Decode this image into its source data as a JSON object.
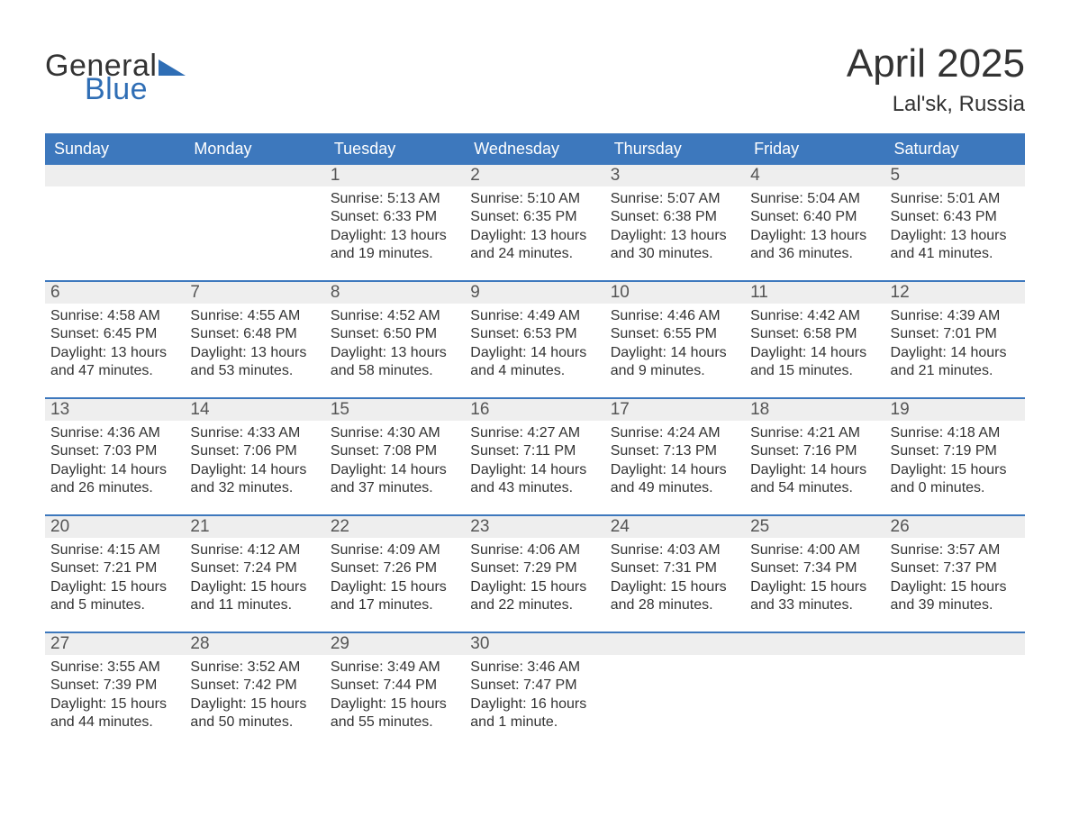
{
  "brand": {
    "word1": "General",
    "word2": "Blue",
    "accent_color": "#2f6eb5"
  },
  "title": "April 2025",
  "location": "Lal'sk, Russia",
  "colors": {
    "header_bg": "#3d78bd",
    "header_text": "#ffffff",
    "daynum_bg": "#eeeeee",
    "week_divider": "#3d78bd",
    "page_bg": "#ffffff",
    "body_text": "#333333"
  },
  "weekdays": [
    "Sunday",
    "Monday",
    "Tuesday",
    "Wednesday",
    "Thursday",
    "Friday",
    "Saturday"
  ],
  "weeks": [
    [
      {},
      {},
      {
        "day": "1",
        "sunrise": "Sunrise: 5:13 AM",
        "sunset": "Sunset: 6:33 PM",
        "daylight": "Daylight: 13 hours and 19 minutes."
      },
      {
        "day": "2",
        "sunrise": "Sunrise: 5:10 AM",
        "sunset": "Sunset: 6:35 PM",
        "daylight": "Daylight: 13 hours and 24 minutes."
      },
      {
        "day": "3",
        "sunrise": "Sunrise: 5:07 AM",
        "sunset": "Sunset: 6:38 PM",
        "daylight": "Daylight: 13 hours and 30 minutes."
      },
      {
        "day": "4",
        "sunrise": "Sunrise: 5:04 AM",
        "sunset": "Sunset: 6:40 PM",
        "daylight": "Daylight: 13 hours and 36 minutes."
      },
      {
        "day": "5",
        "sunrise": "Sunrise: 5:01 AM",
        "sunset": "Sunset: 6:43 PM",
        "daylight": "Daylight: 13 hours and 41 minutes."
      }
    ],
    [
      {
        "day": "6",
        "sunrise": "Sunrise: 4:58 AM",
        "sunset": "Sunset: 6:45 PM",
        "daylight": "Daylight: 13 hours and 47 minutes."
      },
      {
        "day": "7",
        "sunrise": "Sunrise: 4:55 AM",
        "sunset": "Sunset: 6:48 PM",
        "daylight": "Daylight: 13 hours and 53 minutes."
      },
      {
        "day": "8",
        "sunrise": "Sunrise: 4:52 AM",
        "sunset": "Sunset: 6:50 PM",
        "daylight": "Daylight: 13 hours and 58 minutes."
      },
      {
        "day": "9",
        "sunrise": "Sunrise: 4:49 AM",
        "sunset": "Sunset: 6:53 PM",
        "daylight": "Daylight: 14 hours and 4 minutes."
      },
      {
        "day": "10",
        "sunrise": "Sunrise: 4:46 AM",
        "sunset": "Sunset: 6:55 PM",
        "daylight": "Daylight: 14 hours and 9 minutes."
      },
      {
        "day": "11",
        "sunrise": "Sunrise: 4:42 AM",
        "sunset": "Sunset: 6:58 PM",
        "daylight": "Daylight: 14 hours and 15 minutes."
      },
      {
        "day": "12",
        "sunrise": "Sunrise: 4:39 AM",
        "sunset": "Sunset: 7:01 PM",
        "daylight": "Daylight: 14 hours and 21 minutes."
      }
    ],
    [
      {
        "day": "13",
        "sunrise": "Sunrise: 4:36 AM",
        "sunset": "Sunset: 7:03 PM",
        "daylight": "Daylight: 14 hours and 26 minutes."
      },
      {
        "day": "14",
        "sunrise": "Sunrise: 4:33 AM",
        "sunset": "Sunset: 7:06 PM",
        "daylight": "Daylight: 14 hours and 32 minutes."
      },
      {
        "day": "15",
        "sunrise": "Sunrise: 4:30 AM",
        "sunset": "Sunset: 7:08 PM",
        "daylight": "Daylight: 14 hours and 37 minutes."
      },
      {
        "day": "16",
        "sunrise": "Sunrise: 4:27 AM",
        "sunset": "Sunset: 7:11 PM",
        "daylight": "Daylight: 14 hours and 43 minutes."
      },
      {
        "day": "17",
        "sunrise": "Sunrise: 4:24 AM",
        "sunset": "Sunset: 7:13 PM",
        "daylight": "Daylight: 14 hours and 49 minutes."
      },
      {
        "day": "18",
        "sunrise": "Sunrise: 4:21 AM",
        "sunset": "Sunset: 7:16 PM",
        "daylight": "Daylight: 14 hours and 54 minutes."
      },
      {
        "day": "19",
        "sunrise": "Sunrise: 4:18 AM",
        "sunset": "Sunset: 7:19 PM",
        "daylight": "Daylight: 15 hours and 0 minutes."
      }
    ],
    [
      {
        "day": "20",
        "sunrise": "Sunrise: 4:15 AM",
        "sunset": "Sunset: 7:21 PM",
        "daylight": "Daylight: 15 hours and 5 minutes."
      },
      {
        "day": "21",
        "sunrise": "Sunrise: 4:12 AM",
        "sunset": "Sunset: 7:24 PM",
        "daylight": "Daylight: 15 hours and 11 minutes."
      },
      {
        "day": "22",
        "sunrise": "Sunrise: 4:09 AM",
        "sunset": "Sunset: 7:26 PM",
        "daylight": "Daylight: 15 hours and 17 minutes."
      },
      {
        "day": "23",
        "sunrise": "Sunrise: 4:06 AM",
        "sunset": "Sunset: 7:29 PM",
        "daylight": "Daylight: 15 hours and 22 minutes."
      },
      {
        "day": "24",
        "sunrise": "Sunrise: 4:03 AM",
        "sunset": "Sunset: 7:31 PM",
        "daylight": "Daylight: 15 hours and 28 minutes."
      },
      {
        "day": "25",
        "sunrise": "Sunrise: 4:00 AM",
        "sunset": "Sunset: 7:34 PM",
        "daylight": "Daylight: 15 hours and 33 minutes."
      },
      {
        "day": "26",
        "sunrise": "Sunrise: 3:57 AM",
        "sunset": "Sunset: 7:37 PM",
        "daylight": "Daylight: 15 hours and 39 minutes."
      }
    ],
    [
      {
        "day": "27",
        "sunrise": "Sunrise: 3:55 AM",
        "sunset": "Sunset: 7:39 PM",
        "daylight": "Daylight: 15 hours and 44 minutes."
      },
      {
        "day": "28",
        "sunrise": "Sunrise: 3:52 AM",
        "sunset": "Sunset: 7:42 PM",
        "daylight": "Daylight: 15 hours and 50 minutes."
      },
      {
        "day": "29",
        "sunrise": "Sunrise: 3:49 AM",
        "sunset": "Sunset: 7:44 PM",
        "daylight": "Daylight: 15 hours and 55 minutes."
      },
      {
        "day": "30",
        "sunrise": "Sunrise: 3:46 AM",
        "sunset": "Sunset: 7:47 PM",
        "daylight": "Daylight: 16 hours and 1 minute."
      },
      {},
      {},
      {}
    ]
  ]
}
